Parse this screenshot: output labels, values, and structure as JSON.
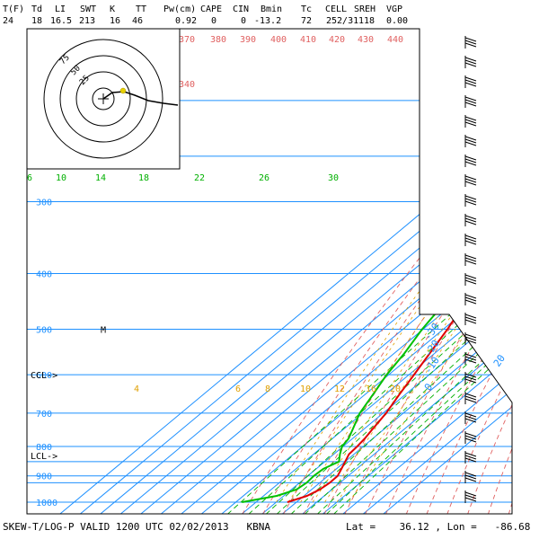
{
  "header": {
    "labels": [
      "T(F)",
      "Td",
      "LI",
      "SWT",
      "K",
      "TT",
      "Pw(cm)",
      "CAPE",
      "CIN",
      "Bmin",
      "Tc",
      "CELL",
      "SREH",
      "VGP"
    ],
    "values": [
      "24",
      "18",
      "16.5",
      "213",
      "16",
      "46",
      "0.92",
      "0",
      "0",
      "-13.2",
      "72",
      "252/31",
      "118",
      "0.00"
    ]
  },
  "footer": {
    "title": "SKEW-T/LOG-P VALID 1200 UTC 02/02/2013",
    "station": "KBNA",
    "lat_label": "Lat =",
    "lat_value": "36.12",
    "lon_label": ", Lon =",
    "lon_value": "-86.68"
  },
  "colors": {
    "temperature": "#e00000",
    "dewpoint": "#00c000",
    "isobar": "#1e90ff",
    "isotherm": "#1e90ff",
    "dry_adiabat": "#e06060",
    "mixing_ratio": "#00b000",
    "moist_adiabat": "#e0a000",
    "hodograph_rings": "#000000"
  },
  "chart_data": {
    "type": "line",
    "pressure_levels": [
      "300",
      "400",
      "500",
      "600",
      "700",
      "800",
      "900",
      "1000"
    ],
    "pressure_range_mb": [
      1050,
      150
    ],
    "isotherm_labels_c": [
      "-30",
      "-20",
      "-10",
      "0",
      "20"
    ],
    "dry_adiabat_labels_k": [
      "370",
      "380",
      "390",
      "400",
      "410",
      "420",
      "430",
      "440",
      "340"
    ],
    "mixing_ratio_labels": [
      "6",
      "10",
      "14",
      "18",
      "22",
      "26",
      "30"
    ],
    "lower_mixing_labels": [
      "4",
      "6",
      "8",
      "10",
      "12",
      "16",
      "20"
    ],
    "level_markers": [
      {
        "label": "CCL->",
        "pressure": 600
      },
      {
        "label": "LCL->",
        "pressure": 830
      },
      {
        "label": "M",
        "pressure": 500
      }
    ],
    "series": [
      {
        "key": "temperature",
        "pressure": [
          1000,
          975,
          950,
          925,
          900,
          875,
          850,
          825,
          800,
          775,
          750,
          700,
          650,
          600,
          550,
          500,
          450,
          400,
          350,
          300,
          250,
          220,
          190,
          170,
          160,
          150
        ],
        "values_c": [
          -4.5,
          1.5,
          4.0,
          5.0,
          4.8,
          2.5,
          0.0,
          -2.5,
          -3.0,
          -4.0,
          -5.5,
          -8.5,
          -13.0,
          -17.5,
          -22.5,
          -28.0,
          -35.0,
          -41.0,
          -47.5,
          -54.5,
          -58.5,
          -59.5,
          -58.0,
          -55.0,
          -52.0,
          -54.0
        ]
      },
      {
        "key": "dewpoint",
        "pressure": [
          1000,
          975,
          950,
          925,
          900,
          875,
          850,
          825,
          800,
          775,
          750,
          700,
          650,
          600,
          550,
          500,
          450,
          400,
          350,
          300,
          250,
          220,
          190,
          170,
          160,
          150
        ],
        "values_c": [
          -27.0,
          -13.5,
          -7.5,
          -6.5,
          -7.0,
          -6.5,
          -3.0,
          -7.0,
          -10.5,
          -12.0,
          -15.0,
          -21.5,
          -26.0,
          -31.0,
          -35.0,
          -40.5,
          -45.0,
          -53.0,
          -61.0,
          -68.0,
          -70.0,
          -66.0,
          -63.0,
          -57.0,
          -51.0,
          -48.0
        ]
      }
    ]
  }
}
